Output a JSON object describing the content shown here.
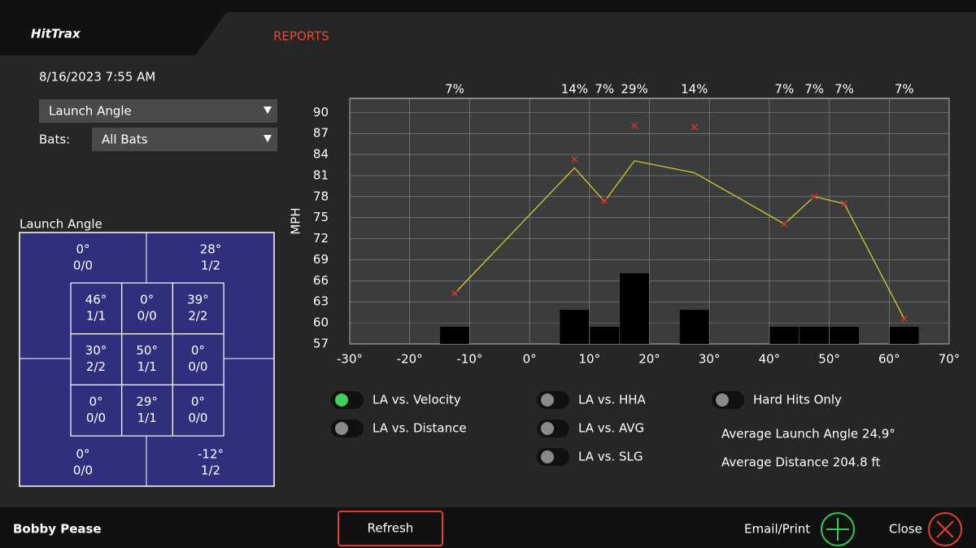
{
  "header": {
    "logo": "HitTrax",
    "tab": "REPORTS"
  },
  "date": "8/16/2023 7:55 AM",
  "controls": {
    "metric": "Launch Angle",
    "bats_label": "Bats:",
    "bats": "All Bats"
  },
  "zone": {
    "title": "Launch Angle",
    "outer": [
      {
        "angle": "0°",
        "ratio": "0/0"
      },
      {
        "angle": "28°",
        "ratio": "1/2"
      },
      {
        "angle": "0°",
        "ratio": "0/0"
      },
      {
        "angle": "-12°",
        "ratio": "1/2"
      }
    ],
    "inner": [
      [
        {
          "angle": "46°",
          "ratio": "1/1"
        },
        {
          "angle": "0°",
          "ratio": "0/0"
        },
        {
          "angle": "39°",
          "ratio": "2/2"
        }
      ],
      [
        {
          "angle": "30°",
          "ratio": "2/2"
        },
        {
          "angle": "50°",
          "ratio": "1/1"
        },
        {
          "angle": "0°",
          "ratio": "0/0"
        }
      ],
      [
        {
          "angle": "0°",
          "ratio": "0/0"
        },
        {
          "angle": "29°",
          "ratio": "1/1"
        },
        {
          "angle": "0°",
          "ratio": "0/0"
        }
      ]
    ]
  },
  "chart_data": {
    "type": "combo",
    "ylabel": "MPH",
    "xlim": [
      -30,
      70
    ],
    "xticks": [
      {
        "value": -30,
        "label": "-30°"
      },
      {
        "value": -20,
        "label": "-20°"
      },
      {
        "value": -10,
        "label": "-10°"
      },
      {
        "value": 0,
        "label": "0°"
      },
      {
        "value": 10,
        "label": "10°"
      },
      {
        "value": 20,
        "label": "20°"
      },
      {
        "value": 30,
        "label": "30°"
      },
      {
        "value": 40,
        "label": "40°"
      },
      {
        "value": 50,
        "label": "50°"
      },
      {
        "value": 60,
        "label": "60°"
      },
      {
        "value": 70,
        "label": "70°"
      }
    ],
    "ylim": [
      57,
      92
    ],
    "yticks": [
      57,
      60,
      63,
      66,
      69,
      72,
      75,
      78,
      81,
      84,
      87,
      90
    ],
    "grid": true,
    "histogram": {
      "color": "#000000",
      "bins": [
        -15,
        -10,
        -5,
        0,
        5,
        10,
        15,
        20,
        25,
        30,
        35,
        40,
        45,
        50,
        55,
        60,
        65
      ],
      "values": [
        7,
        null,
        null,
        null,
        14,
        7,
        29,
        null,
        14,
        null,
        null,
        7,
        7,
        7,
        null,
        7
      ],
      "value_labels": [
        "7%",
        null,
        null,
        null,
        "14%",
        "7%",
        "29%",
        null,
        "14%",
        null,
        null,
        "7%",
        "7%",
        "7%",
        null,
        "7%"
      ]
    },
    "line": {
      "color": "#d8c830",
      "x": [
        -12.5,
        7.5,
        12.5,
        17.5,
        27.5,
        42.5,
        47.5,
        52.5,
        62.5
      ],
      "values": [
        64.2,
        82.1,
        77.3,
        83.1,
        81.4,
        74.1,
        78.0,
        77.0,
        60.6
      ]
    },
    "markers": {
      "color": "#e03030",
      "x": [
        -12.5,
        7.5,
        12.5,
        17.5,
        27.5,
        42.5,
        47.5,
        52.5,
        62.5
      ],
      "values": [
        64.2,
        83.3,
        77.4,
        88.1,
        87.9,
        74.1,
        78.0,
        77.0,
        60.6
      ]
    }
  },
  "toggles": [
    {
      "label": "LA vs. Velocity",
      "on": true
    },
    {
      "label": "LA vs. Distance",
      "on": false
    },
    {
      "label": "LA vs. HHA",
      "on": false
    },
    {
      "label": "LA vs. AVG",
      "on": false
    },
    {
      "label": "LA vs. SLG",
      "on": false
    },
    {
      "label": "Hard Hits Only",
      "on": false
    }
  ],
  "stats": [
    "Average Launch Angle 24.9°",
    "Average Distance 204.8 ft"
  ],
  "footer": {
    "player": "Bobby Pease",
    "refresh": "Refresh",
    "email": "Email/Print",
    "close": "Close"
  }
}
